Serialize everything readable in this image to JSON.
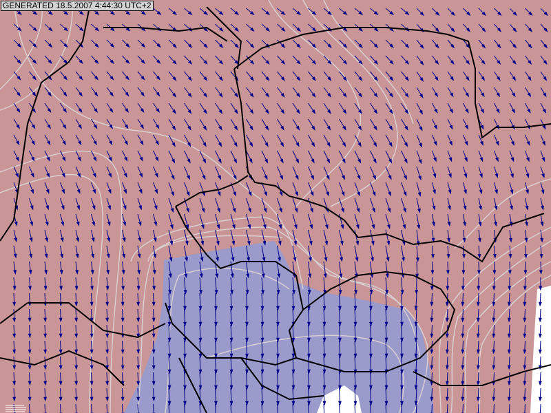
{
  "generated_label": "GENERATED 18.5.2007 4:44:30 UTC+2",
  "colors": {
    "positive_fill": "#c99597",
    "negative_fill": "#9a9acb",
    "no_data": "#ffffff",
    "contour": "#d8d0d0",
    "wind_arrow": "#00008b",
    "border": "#000000"
  },
  "legend_icon": "scale-legend-icon"
}
